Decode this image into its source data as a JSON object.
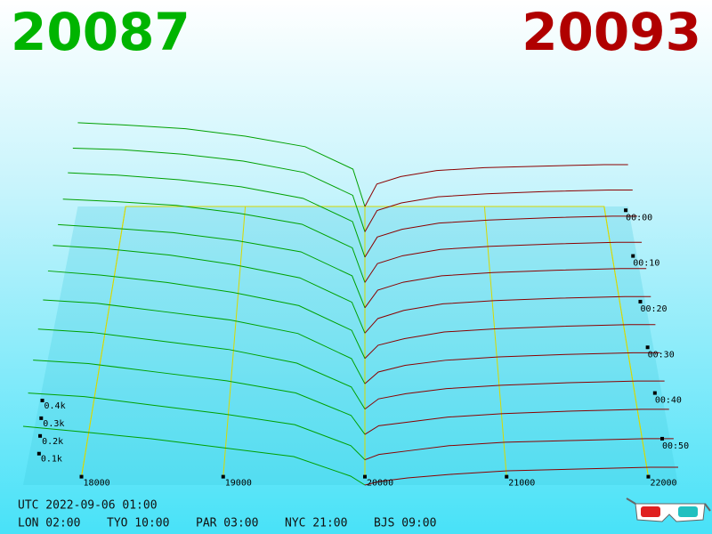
{
  "header": {
    "bid": "20087",
    "ask": "20093"
  },
  "depth": {
    "bid_color": "#00a000",
    "ask_color": "#8b0000",
    "floor_color": "#d8d800",
    "bid_prices": [
      17600,
      18000,
      18500,
      19000,
      19500,
      19900,
      20000
    ],
    "ask_prices": [
      20000,
      20100,
      20300,
      20600,
      21000,
      21500,
      22000,
      22200
    ],
    "bid_rows": [
      [
        560,
        545,
        520,
        470,
        400,
        250,
        0
      ],
      [
        550,
        540,
        510,
        465,
        390,
        240,
        0
      ],
      [
        545,
        530,
        500,
        455,
        380,
        230,
        0
      ],
      [
        530,
        515,
        490,
        440,
        370,
        220,
        0
      ],
      [
        520,
        500,
        470,
        420,
        350,
        200,
        0
      ],
      [
        540,
        520,
        480,
        420,
        340,
        190,
        0
      ],
      [
        530,
        505,
        460,
        400,
        320,
        170,
        0
      ],
      [
        500,
        480,
        430,
        380,
        300,
        150,
        0
      ],
      [
        470,
        450,
        400,
        350,
        270,
        130,
        0
      ],
      [
        430,
        410,
        360,
        310,
        240,
        110,
        0
      ],
      [
        380,
        360,
        310,
        260,
        200,
        80,
        0
      ],
      [
        330,
        300,
        260,
        210,
        160,
        50,
        0
      ]
    ],
    "ask_rows": [
      [
        0,
        150,
        200,
        240,
        260,
        270,
        280,
        280
      ],
      [
        0,
        140,
        190,
        230,
        250,
        265,
        275,
        275
      ],
      [
        0,
        130,
        180,
        220,
        240,
        255,
        265,
        265
      ],
      [
        0,
        120,
        170,
        210,
        230,
        245,
        255,
        255
      ],
      [
        0,
        110,
        160,
        200,
        220,
        235,
        245,
        245
      ],
      [
        0,
        90,
        140,
        180,
        200,
        215,
        225,
        225
      ],
      [
        0,
        80,
        120,
        160,
        180,
        195,
        205,
        205
      ],
      [
        0,
        70,
        110,
        140,
        160,
        175,
        185,
        185
      ],
      [
        0,
        60,
        90,
        120,
        140,
        155,
        165,
        165
      ],
      [
        0,
        50,
        70,
        100,
        120,
        135,
        145,
        145
      ],
      [
        0,
        30,
        50,
        80,
        100,
        110,
        120,
        120
      ],
      [
        0,
        20,
        40,
        60,
        80,
        90,
        100,
        100
      ]
    ],
    "price_ticks": [
      18000,
      19000,
      20000,
      21000,
      22000
    ],
    "depth_ticks": [
      {
        "value": 100,
        "label": "0.1k"
      },
      {
        "value": 200,
        "label": "0.2k"
      },
      {
        "value": 300,
        "label": "0.3k"
      },
      {
        "value": 400,
        "label": "0.4k"
      }
    ],
    "time_ticks": [
      "00:00",
      "00:10",
      "00:20",
      "00:30",
      "00:40",
      "00:50"
    ]
  },
  "footer": {
    "utc": "UTC 2022-09-06 01:00",
    "clocks": [
      "LON 02:00",
      "TYO 10:00",
      "PAR 03:00",
      "NYC 21:00",
      "BJS 09:00"
    ]
  }
}
